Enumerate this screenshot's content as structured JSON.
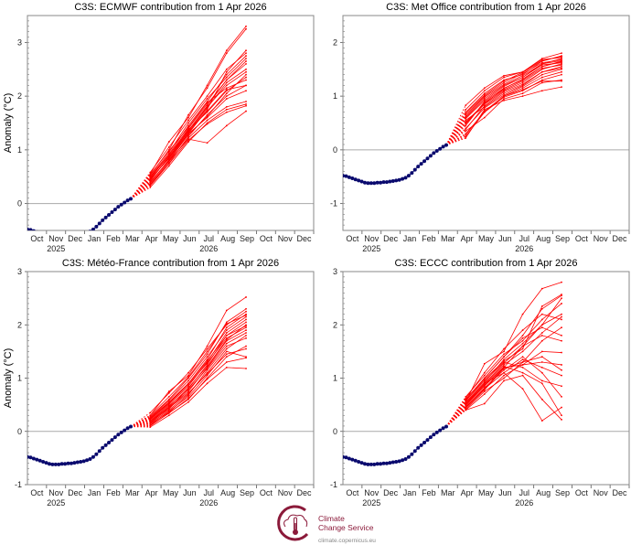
{
  "colors": {
    "observations": "#0a0a6e",
    "forecast": "#ff0000",
    "zero_line": "#aaaaaa",
    "logo": "#8b1a3a"
  },
  "x_ticks": {
    "months": [
      "Oct",
      "Nov",
      "Dec",
      "Jan",
      "Feb",
      "Mar",
      "Apr",
      "May",
      "Jun",
      "Jul",
      "Aug",
      "Sep",
      "Oct",
      "Nov",
      "Dec"
    ],
    "years": [
      "2025",
      "2026"
    ],
    "xlim": [
      "2025-10-01",
      "2027-01-01"
    ]
  },
  "observations": {
    "dates": [
      "2025-10-01",
      "2025-10-06",
      "2025-10-11",
      "2025-10-16",
      "2025-10-21",
      "2025-10-26",
      "2025-10-31",
      "2025-11-05",
      "2025-11-10",
      "2025-11-15",
      "2025-11-20",
      "2025-11-25",
      "2025-11-30",
      "2025-12-05",
      "2025-12-10",
      "2025-12-15",
      "2025-12-20",
      "2025-12-25",
      "2025-12-30",
      "2026-01-04",
      "2026-01-09",
      "2026-01-14",
      "2026-01-19",
      "2026-01-24",
      "2026-01-29",
      "2026-02-03",
      "2026-02-08",
      "2026-02-13",
      "2026-02-18",
      "2026-02-23",
      "2026-02-28",
      "2026-03-05",
      "2026-03-10",
      "2026-03-15"
    ],
    "values": [
      -0.48,
      -0.49,
      -0.51,
      -0.53,
      -0.55,
      -0.57,
      -0.59,
      -0.61,
      -0.62,
      -0.62,
      -0.62,
      -0.61,
      -0.61,
      -0.6,
      -0.6,
      -0.59,
      -0.58,
      -0.57,
      -0.56,
      -0.54,
      -0.52,
      -0.48,
      -0.43,
      -0.37,
      -0.31,
      -0.26,
      -0.21,
      -0.16,
      -0.11,
      -0.06,
      -0.02,
      0.02,
      0.06,
      0.09
    ]
  },
  "forecast_dates": [
    "2026-04-15",
    "2026-05-15",
    "2026-06-15",
    "2026-07-15",
    "2026-08-15",
    "2026-09-15"
  ],
  "chart_data": [
    {
      "type": "line",
      "title": "C3S: ECMWF contribution from 1 Apr 2026",
      "ylabel": "Anomaly (°C)",
      "ylim": [
        -0.5,
        3.5
      ],
      "yticks": [
        "0",
        "1",
        "2",
        "3"
      ],
      "ytick_values": [
        0,
        1,
        2,
        3
      ],
      "members": [
        [
          0.45,
          0.85,
          1.35,
          1.8,
          2.2,
          2.45
        ],
        [
          0.5,
          0.9,
          1.4,
          1.85,
          2.3,
          2.6
        ],
        [
          0.35,
          0.75,
          1.25,
          1.65,
          2.0,
          2.2
        ],
        [
          0.55,
          1.15,
          1.6,
          2.2,
          2.85,
          3.3
        ],
        [
          0.52,
          1.0,
          1.65,
          2.15,
          2.8,
          3.25
        ],
        [
          0.4,
          0.8,
          1.2,
          1.13,
          1.45,
          1.72
        ],
        [
          0.3,
          0.7,
          1.15,
          1.5,
          1.75,
          1.85
        ],
        [
          0.42,
          0.88,
          1.3,
          1.75,
          2.45,
          2.85
        ],
        [
          0.48,
          0.92,
          1.45,
          1.9,
          2.4,
          2.75
        ],
        [
          0.38,
          0.82,
          1.3,
          1.6,
          1.95,
          2.1
        ],
        [
          0.44,
          0.86,
          1.38,
          1.7,
          2.1,
          2.35
        ],
        [
          0.5,
          0.95,
          1.5,
          1.95,
          2.35,
          2.7
        ],
        [
          0.36,
          0.78,
          1.22,
          1.55,
          1.8,
          1.9
        ],
        [
          0.46,
          0.84,
          1.32,
          1.78,
          2.25,
          2.5
        ],
        [
          0.54,
          0.98,
          1.42,
          1.88,
          2.15,
          2.3
        ],
        [
          0.4,
          0.8,
          1.28,
          1.62,
          2.05,
          2.4
        ],
        [
          0.47,
          0.9,
          1.36,
          1.82,
          2.3,
          2.65
        ],
        [
          0.33,
          0.74,
          1.18,
          1.48,
          1.7,
          1.82
        ],
        [
          0.58,
          1.05,
          1.55,
          2.0,
          2.5,
          2.8
        ],
        [
          0.43,
          0.87,
          1.34,
          1.72,
          2.12,
          2.2
        ]
      ]
    },
    {
      "type": "line",
      "title": "C3S: Met Office contribution from 1 Apr 2026",
      "ylabel": "",
      "ylim": [
        -1.5,
        2.5
      ],
      "yticks": [
        "-1",
        "0",
        "1",
        "2"
      ],
      "ytick_values": [
        -1,
        0,
        1,
        2
      ],
      "members": [
        [
          0.25,
          0.7,
          1.0,
          1.15,
          1.35,
          1.45
        ],
        [
          0.6,
          0.95,
          1.2,
          1.35,
          1.6,
          1.7
        ],
        [
          0.83,
          1.15,
          1.38,
          1.45,
          1.7,
          1.8
        ],
        [
          0.35,
          0.6,
          0.95,
          1.05,
          1.25,
          1.3
        ],
        [
          0.5,
          0.85,
          1.1,
          1.25,
          1.5,
          1.6
        ],
        [
          0.7,
          1.05,
          1.3,
          1.4,
          1.65,
          1.75
        ],
        [
          0.22,
          0.75,
          0.92,
          1.0,
          1.1,
          1.17
        ],
        [
          0.45,
          0.9,
          1.15,
          1.3,
          1.55,
          1.65
        ],
        [
          0.55,
          0.8,
          1.05,
          1.2,
          1.45,
          1.55
        ],
        [
          0.65,
          1.0,
          1.25,
          1.42,
          1.62,
          1.68
        ],
        [
          0.4,
          0.78,
          1.02,
          1.18,
          1.4,
          1.5
        ],
        [
          0.75,
          1.1,
          1.35,
          1.45,
          1.68,
          1.72
        ],
        [
          0.3,
          0.7,
          0.98,
          1.1,
          1.3,
          1.4
        ],
        [
          0.58,
          0.92,
          1.18,
          1.35,
          1.58,
          1.62
        ],
        [
          0.48,
          0.88,
          1.12,
          1.28,
          1.52,
          1.58
        ],
        [
          0.62,
          0.98,
          1.22,
          1.38,
          1.6,
          1.66
        ],
        [
          0.38,
          0.82,
          1.08,
          1.22,
          1.45,
          1.52
        ],
        [
          0.68,
          1.02,
          1.28,
          1.44,
          1.66,
          1.74
        ],
        [
          0.28,
          0.72,
          1.0,
          1.12,
          1.28,
          1.28
        ],
        [
          0.52,
          0.86,
          1.14,
          1.32,
          1.55,
          1.64
        ]
      ]
    },
    {
      "type": "line",
      "title": "C3S: Météo-France contribution from 1 Apr 2026",
      "ylabel": "Anomaly (°C)",
      "ylim": [
        -1,
        3
      ],
      "yticks": [
        "-1",
        "0",
        "1",
        "2",
        "3"
      ],
      "ytick_values": [
        -1,
        0,
        1,
        2,
        3
      ],
      "members": [
        [
          0.1,
          0.35,
          0.6,
          1.0,
          1.4,
          1.6
        ],
        [
          0.2,
          0.45,
          0.75,
          1.2,
          1.7,
          1.9
        ],
        [
          0.3,
          0.75,
          1.05,
          1.6,
          2.27,
          2.52
        ],
        [
          0.15,
          0.4,
          0.7,
          1.1,
          1.55,
          1.8
        ],
        [
          0.25,
          0.55,
          0.9,
          1.35,
          1.95,
          2.2
        ],
        [
          0.08,
          0.3,
          0.55,
          0.9,
          1.2,
          1.18
        ],
        [
          0.18,
          0.42,
          0.8,
          1.25,
          1.8,
          2.05
        ],
        [
          0.28,
          0.6,
          1.0,
          1.45,
          2.05,
          2.3
        ],
        [
          0.12,
          0.38,
          0.65,
          1.05,
          1.5,
          1.4
        ],
        [
          0.22,
          0.5,
          0.85,
          1.3,
          1.85,
          2.1
        ],
        [
          0.35,
          0.72,
          1.1,
          1.55,
          2.0,
          2.25
        ],
        [
          0.14,
          0.36,
          0.68,
          1.15,
          1.6,
          1.75
        ],
        [
          0.24,
          0.52,
          0.88,
          1.28,
          1.75,
          1.95
        ],
        [
          0.16,
          0.44,
          0.72,
          1.08,
          1.45,
          1.55
        ],
        [
          0.26,
          0.58,
          0.95,
          1.4,
          1.9,
          2.15
        ],
        [
          0.2,
          0.48,
          0.78,
          1.18,
          1.65,
          1.85
        ],
        [
          0.11,
          0.34,
          0.62,
          0.98,
          1.3,
          1.38
        ],
        [
          0.3,
          0.65,
          1.02,
          1.5,
          2.02,
          2.18
        ],
        [
          0.18,
          0.46,
          0.82,
          1.22,
          1.72,
          2.0
        ],
        [
          0.23,
          0.54,
          0.9,
          1.32,
          1.8,
          1.98
        ]
      ]
    },
    {
      "type": "line",
      "title": "C3S: ECCC contribution from 1 Apr 2026",
      "ylabel": "",
      "ylim": [
        -1,
        3
      ],
      "yticks": [
        "-1",
        "0",
        "1",
        "2",
        "3"
      ],
      "ytick_values": [
        -1,
        0,
        1,
        2,
        3
      ],
      "members": [
        [
          0.45,
          0.8,
          1.2,
          1.6,
          2.0,
          2.5
        ],
        [
          0.55,
          1.27,
          1.5,
          2.2,
          2.68,
          2.8
        ],
        [
          0.4,
          0.52,
          0.95,
          1.05,
          0.6,
          0.22
        ],
        [
          0.6,
          1.0,
          1.4,
          1.8,
          2.3,
          2.55
        ],
        [
          0.5,
          0.9,
          1.1,
          0.8,
          0.2,
          0.45
        ],
        [
          0.48,
          0.85,
          1.2,
          1.25,
          1.3,
          1.25
        ],
        [
          0.62,
          1.1,
          1.55,
          1.9,
          2.2,
          2.1
        ],
        [
          0.42,
          0.75,
          1.0,
          1.3,
          1.7,
          1.95
        ],
        [
          0.58,
          0.95,
          1.3,
          1.2,
          0.95,
          0.85
        ],
        [
          0.52,
          0.88,
          1.25,
          1.5,
          1.85,
          2.15
        ],
        [
          0.45,
          0.82,
          1.15,
          1.4,
          1.1,
          0.65
        ],
        [
          0.65,
          1.05,
          1.45,
          1.7,
          2.1,
          2.4
        ],
        [
          0.4,
          0.7,
          1.05,
          1.25,
          1.5,
          1.48
        ],
        [
          0.55,
          0.92,
          1.35,
          1.65,
          2.0,
          2.2
        ],
        [
          0.5,
          0.86,
          1.22,
          1.1,
          0.9,
          0.3
        ],
        [
          0.6,
          1.0,
          1.4,
          1.75,
          1.95,
          1.8
        ],
        [
          0.46,
          0.8,
          1.1,
          1.35,
          1.2,
          1.05
        ],
        [
          0.57,
          0.98,
          1.32,
          1.55,
          2.35,
          2.57
        ],
        [
          0.44,
          0.78,
          1.18,
          1.3,
          1.4,
          1.15
        ],
        [
          0.53,
          0.9,
          1.28,
          1.6,
          1.8,
          1.7
        ]
      ]
    }
  ],
  "logo": {
    "line1": "Climate",
    "line2": "Change Service",
    "url": "climate.copernicus.eu"
  }
}
